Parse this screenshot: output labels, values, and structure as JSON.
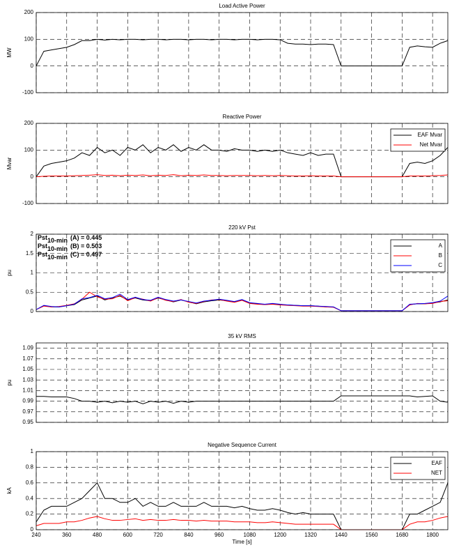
{
  "chart_data": [
    {
      "type": "line",
      "title": "Load Active Power",
      "ylabel": "MW",
      "xlim": [
        240,
        1860
      ],
      "ylim": [
        -100,
        200
      ],
      "yticks": [
        -100,
        0,
        100,
        200
      ],
      "grid": true,
      "x": [
        240,
        270,
        300,
        330,
        360,
        390,
        420,
        450,
        480,
        510,
        540,
        570,
        600,
        630,
        660,
        690,
        720,
        750,
        780,
        810,
        840,
        870,
        900,
        930,
        960,
        990,
        1020,
        1050,
        1080,
        1110,
        1140,
        1170,
        1200,
        1230,
        1260,
        1290,
        1320,
        1350,
        1380,
        1410,
        1440,
        1470,
        1500,
        1530,
        1560,
        1590,
        1620,
        1650,
        1680,
        1710,
        1740,
        1770,
        1800,
        1830,
        1860
      ],
      "series": [
        {
          "color": "#000000",
          "values": [
            0,
            55,
            60,
            65,
            70,
            80,
            95,
            95,
            100,
            97,
            100,
            98,
            100,
            100,
            98,
            100,
            100,
            98,
            100,
            100,
            98,
            100,
            100,
            98,
            100,
            100,
            98,
            100,
            100,
            98,
            100,
            100,
            98,
            85,
            82,
            82,
            80,
            82,
            82,
            80,
            0,
            0,
            0,
            0,
            0,
            0,
            0,
            0,
            0,
            70,
            75,
            72,
            70,
            85,
            95
          ]
        }
      ]
    },
    {
      "type": "line",
      "title": "Reactive Power",
      "ylabel": "Mvar",
      "xlim": [
        240,
        1860
      ],
      "ylim": [
        -100,
        200
      ],
      "yticks": [
        -100,
        0,
        100,
        200
      ],
      "grid": true,
      "legend": "northeast",
      "x": [
        240,
        270,
        300,
        330,
        360,
        390,
        420,
        450,
        480,
        510,
        540,
        570,
        600,
        630,
        660,
        690,
        720,
        750,
        780,
        810,
        840,
        870,
        900,
        930,
        960,
        990,
        1020,
        1050,
        1080,
        1110,
        1140,
        1170,
        1200,
        1230,
        1260,
        1290,
        1320,
        1350,
        1380,
        1410,
        1440,
        1470,
        1500,
        1530,
        1560,
        1590,
        1620,
        1650,
        1680,
        1710,
        1740,
        1770,
        1800,
        1830,
        1860
      ],
      "series": [
        {
          "name": "EAF Mvar",
          "color": "#000000",
          "values": [
            0,
            40,
            50,
            55,
            60,
            70,
            90,
            80,
            110,
            90,
            100,
            80,
            110,
            100,
            120,
            90,
            110,
            100,
            120,
            95,
            110,
            100,
            120,
            100,
            100,
            95,
            105,
            100,
            100,
            95,
            100,
            95,
            100,
            90,
            85,
            80,
            90,
            80,
            85,
            85,
            0,
            0,
            0,
            0,
            0,
            0,
            0,
            0,
            0,
            50,
            55,
            50,
            60,
            80,
            110
          ]
        },
        {
          "name": "Net Mvar",
          "color": "#ff0000",
          "values": [
            0,
            2,
            3,
            3,
            3,
            4,
            5,
            6,
            8,
            5,
            6,
            4,
            6,
            5,
            7,
            4,
            6,
            5,
            8,
            4,
            6,
            5,
            7,
            5,
            5,
            4,
            5,
            5,
            5,
            4,
            5,
            4,
            5,
            4,
            3,
            3,
            4,
            3,
            3,
            3,
            0,
            0,
            0,
            0,
            0,
            0,
            0,
            0,
            0,
            3,
            3,
            3,
            4,
            5,
            7
          ]
        }
      ]
    },
    {
      "type": "line",
      "title": "220 kV Pst",
      "ylabel": "pu",
      "xlim": [
        240,
        1860
      ],
      "ylim": [
        0,
        2
      ],
      "yticks": [
        0,
        0.5,
        1,
        1.5,
        2
      ],
      "grid": true,
      "legend": "northeast",
      "annotations": [
        {
          "text": "Pst",
          "sub": "10-min",
          "label": "(A) = 0.445"
        },
        {
          "text": "Pst",
          "sub": "10-min",
          "label": "(B) = 0.503"
        },
        {
          "text": "Pst",
          "sub": "10-min",
          "label": "(C) = 0.497"
        }
      ],
      "x": [
        240,
        270,
        300,
        330,
        360,
        390,
        420,
        450,
        480,
        510,
        540,
        570,
        600,
        630,
        660,
        690,
        720,
        750,
        780,
        810,
        840,
        870,
        900,
        930,
        960,
        990,
        1020,
        1050,
        1080,
        1110,
        1140,
        1170,
        1200,
        1230,
        1260,
        1290,
        1320,
        1350,
        1380,
        1410,
        1440,
        1470,
        1500,
        1530,
        1560,
        1590,
        1620,
        1650,
        1680,
        1710,
        1740,
        1770,
        1800,
        1830,
        1860
      ],
      "series": [
        {
          "name": "A",
          "color": "#000000",
          "values": [
            0.05,
            0.15,
            0.12,
            0.12,
            0.15,
            0.18,
            0.3,
            0.35,
            0.4,
            0.3,
            0.35,
            0.4,
            0.3,
            0.35,
            0.3,
            0.28,
            0.35,
            0.3,
            0.25,
            0.3,
            0.25,
            0.2,
            0.25,
            0.28,
            0.3,
            0.28,
            0.25,
            0.3,
            0.22,
            0.2,
            0.18,
            0.2,
            0.18,
            0.17,
            0.16,
            0.15,
            0.15,
            0.14,
            0.12,
            0.12,
            0.02,
            0.02,
            0.02,
            0.02,
            0.02,
            0.02,
            0.02,
            0.02,
            0.02,
            0.18,
            0.2,
            0.2,
            0.22,
            0.25,
            0.3
          ]
        },
        {
          "name": "B",
          "color": "#ff0000",
          "values": [
            0.05,
            0.14,
            0.12,
            0.13,
            0.16,
            0.2,
            0.32,
            0.5,
            0.38,
            0.32,
            0.33,
            0.42,
            0.28,
            0.36,
            0.32,
            0.27,
            0.36,
            0.29,
            0.26,
            0.31,
            0.24,
            0.21,
            0.26,
            0.3,
            0.31,
            0.27,
            0.24,
            0.29,
            0.21,
            0.19,
            0.18,
            0.19,
            0.17,
            0.16,
            0.15,
            0.14,
            0.14,
            0.13,
            0.12,
            0.11,
            0.02,
            0.02,
            0.02,
            0.02,
            0.02,
            0.02,
            0.02,
            0.02,
            0.02,
            0.17,
            0.21,
            0.2,
            0.21,
            0.26,
            0.28
          ]
        },
        {
          "name": "C",
          "color": "#0000ff",
          "values": [
            0.05,
            0.16,
            0.13,
            0.12,
            0.15,
            0.19,
            0.33,
            0.36,
            0.42,
            0.33,
            0.36,
            0.45,
            0.31,
            0.37,
            0.31,
            0.29,
            0.37,
            0.31,
            0.27,
            0.3,
            0.26,
            0.22,
            0.27,
            0.29,
            0.32,
            0.29,
            0.26,
            0.31,
            0.23,
            0.21,
            0.19,
            0.21,
            0.19,
            0.17,
            0.16,
            0.15,
            0.15,
            0.14,
            0.13,
            0.12,
            0.02,
            0.02,
            0.02,
            0.02,
            0.02,
            0.02,
            0.02,
            0.02,
            0.02,
            0.19,
            0.2,
            0.21,
            0.23,
            0.27,
            0.4
          ]
        }
      ]
    },
    {
      "type": "line",
      "title": "35 kV RMS",
      "ylabel": "pu",
      "xlim": [
        240,
        1860
      ],
      "ylim": [
        0.95,
        1.1
      ],
      "yticks": [
        0.95,
        0.97,
        0.99,
        1.01,
        1.03,
        1.05,
        1.07,
        1.09
      ],
      "grid": true,
      "x": [
        240,
        270,
        300,
        330,
        360,
        390,
        420,
        450,
        480,
        510,
        540,
        570,
        600,
        630,
        660,
        690,
        720,
        750,
        780,
        810,
        840,
        870,
        900,
        930,
        960,
        990,
        1020,
        1050,
        1080,
        1110,
        1140,
        1170,
        1200,
        1230,
        1260,
        1290,
        1320,
        1350,
        1380,
        1410,
        1440,
        1470,
        1500,
        1530,
        1560,
        1590,
        1620,
        1650,
        1680,
        1710,
        1740,
        1770,
        1800,
        1830,
        1860
      ],
      "series": [
        {
          "color": "#000000",
          "values": [
            0.999,
            0.999,
            0.998,
            0.998,
            0.998,
            0.995,
            0.99,
            0.99,
            0.988,
            0.99,
            0.987,
            0.99,
            0.988,
            0.99,
            0.985,
            0.99,
            0.988,
            0.99,
            0.986,
            0.99,
            0.988,
            0.99,
            0.99,
            0.99,
            0.99,
            0.99,
            0.99,
            0.99,
            0.99,
            0.99,
            0.99,
            0.99,
            0.99,
            0.99,
            0.99,
            0.99,
            0.99,
            0.99,
            0.99,
            0.99,
            1.0,
            1.0,
            1.0,
            1.0,
            1.0,
            1.0,
            1.0,
            1.0,
            1.0,
            1.0,
            0.998,
            0.999,
            1.0,
            0.99,
            0.988
          ]
        }
      ]
    },
    {
      "type": "line",
      "title": "Negative Sequence Current",
      "ylabel": "kA",
      "xlabel": "Time [s]",
      "xlim": [
        240,
        1860
      ],
      "ylim": [
        0,
        1
      ],
      "yticks": [
        0,
        0.2,
        0.4,
        0.6,
        0.8,
        1
      ],
      "xticks": [
        240,
        360,
        480,
        600,
        720,
        840,
        960,
        1080,
        1200,
        1320,
        1440,
        1560,
        1680,
        1800
      ],
      "grid": true,
      "legend": "northeast",
      "x": [
        240,
        270,
        300,
        330,
        360,
        390,
        420,
        450,
        480,
        510,
        540,
        570,
        600,
        630,
        660,
        690,
        720,
        750,
        780,
        810,
        840,
        870,
        900,
        930,
        960,
        990,
        1020,
        1050,
        1080,
        1110,
        1140,
        1170,
        1200,
        1230,
        1260,
        1290,
        1320,
        1350,
        1380,
        1410,
        1440,
        1470,
        1500,
        1530,
        1560,
        1590,
        1620,
        1650,
        1680,
        1710,
        1740,
        1770,
        1800,
        1830,
        1860
      ],
      "series": [
        {
          "name": "EAF",
          "color": "#000000",
          "values": [
            0.1,
            0.25,
            0.3,
            0.3,
            0.3,
            0.35,
            0.4,
            0.5,
            0.6,
            0.4,
            0.4,
            0.35,
            0.35,
            0.4,
            0.3,
            0.35,
            0.3,
            0.3,
            0.35,
            0.3,
            0.3,
            0.3,
            0.35,
            0.3,
            0.3,
            0.3,
            0.28,
            0.3,
            0.27,
            0.25,
            0.25,
            0.27,
            0.25,
            0.22,
            0.2,
            0.22,
            0.2,
            0.2,
            0.2,
            0.2,
            0,
            0,
            0,
            0,
            0,
            0,
            0,
            0,
            0,
            0.2,
            0.2,
            0.25,
            0.3,
            0.35,
            0.6
          ]
        },
        {
          "name": "NET",
          "color": "#ff0000",
          "values": [
            0.05,
            0.08,
            0.08,
            0.08,
            0.1,
            0.1,
            0.12,
            0.15,
            0.17,
            0.14,
            0.12,
            0.12,
            0.13,
            0.14,
            0.12,
            0.13,
            0.12,
            0.12,
            0.13,
            0.12,
            0.12,
            0.11,
            0.12,
            0.11,
            0.11,
            0.11,
            0.1,
            0.1,
            0.1,
            0.09,
            0.09,
            0.1,
            0.09,
            0.08,
            0.07,
            0.07,
            0.07,
            0.07,
            0.07,
            0.07,
            0,
            0,
            0,
            0,
            0,
            0,
            0,
            0,
            0,
            0.07,
            0.1,
            0.1,
            0.12,
            0.15,
            0.17
          ]
        }
      ]
    }
  ]
}
